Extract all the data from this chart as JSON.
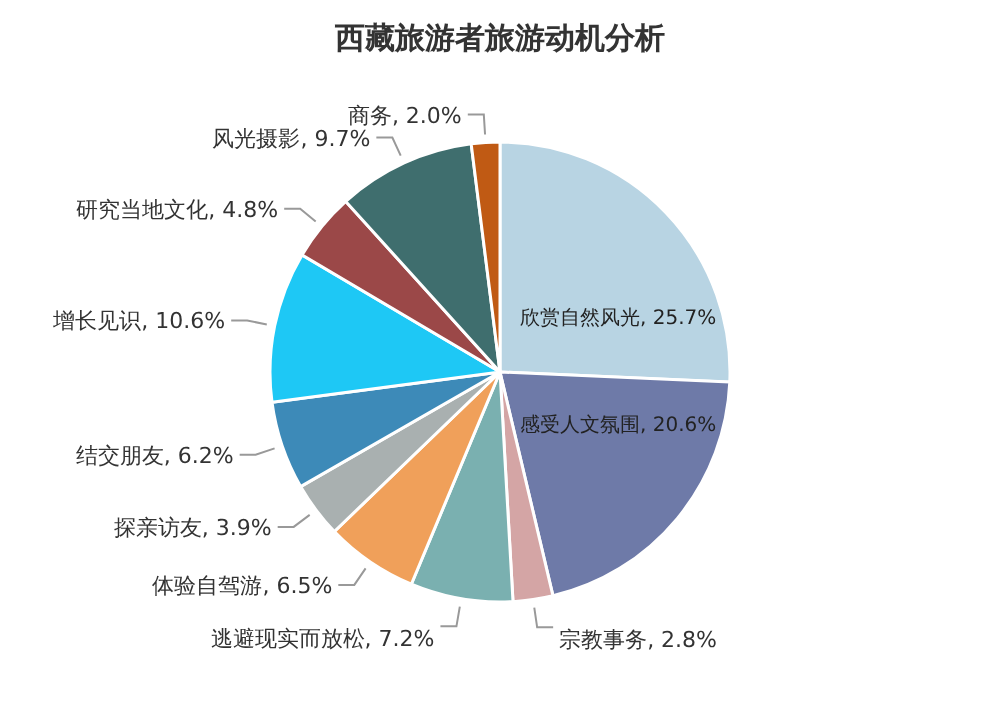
{
  "chart_data": {
    "type": "pie",
    "title": "西藏旅游者旅游动机分析",
    "categories": [
      "欣赏自然风光",
      "感受人文氛围",
      "宗教事务",
      "逃避现实而放松",
      "体验自驾游",
      "探亲访友",
      "结交朋友",
      "增长见识",
      "研究当地文化",
      "风光摄影",
      "商务"
    ],
    "values": [
      25.7,
      20.6,
      2.8,
      7.2,
      6.5,
      3.9,
      6.2,
      10.6,
      4.8,
      9.7,
      2.0
    ],
    "value_labels": [
      "25.7%",
      "20.6%",
      "2.8%",
      "7.2%",
      "6.5%",
      "3.9%",
      "6.2%",
      "10.6%",
      "4.8%",
      "9.7%",
      "2.0%"
    ],
    "colors": [
      "#b8d4e3",
      "#6e7aa8",
      "#d4a5a5",
      "#7ab0b0",
      "#f0a05a",
      "#a9b0b0",
      "#3d8ab8",
      "#1ec8f5",
      "#9b4848",
      "#3f6e6e",
      "#c05a14"
    ]
  }
}
